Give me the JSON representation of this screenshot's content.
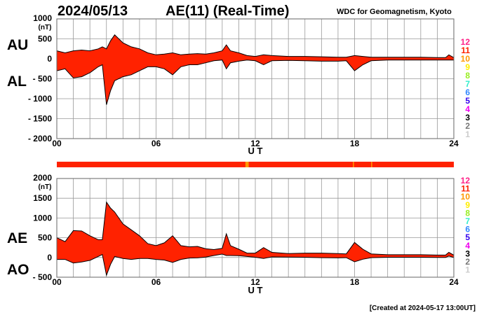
{
  "header": {
    "date": "2024/05/13",
    "title": "AE(11) (Real-Time)",
    "source": "WDC for Geomagnetism, Kyoto",
    "created": "[Created at 2024-05-17 13:00UT]"
  },
  "colors": {
    "fill": "#ff2200",
    "fill_10_stations": "#ff9900",
    "outline": "#000000",
    "grid": "#999999"
  },
  "station_legend": [
    {
      "label": "12",
      "color": "#ff2288"
    },
    {
      "label": "11",
      "color": "#ff2200"
    },
    {
      "label": "10",
      "color": "#ff9900"
    },
    {
      "label": "9",
      "color": "#ffee00"
    },
    {
      "label": "8",
      "color": "#99ee22"
    },
    {
      "label": "7",
      "color": "#33eecc"
    },
    {
      "label": "6",
      "color": "#3388ff"
    },
    {
      "label": "5",
      "color": "#3300ee"
    },
    {
      "label": "4",
      "color": "#ee00ee"
    },
    {
      "label": "3",
      "color": "#000000"
    },
    {
      "label": "2",
      "color": "#777777"
    },
    {
      "label": "1",
      "color": "#cccccc"
    }
  ],
  "station_bar": {
    "base_color": "#ff2200",
    "segments": [
      {
        "from": 11.4,
        "to": 11.6,
        "color": "#ff9900"
      },
      {
        "from": 17.9,
        "to": 17.95,
        "color": "#ff9900"
      },
      {
        "from": 19.0,
        "to": 19.05,
        "color": "#ff9900"
      }
    ]
  },
  "chart_data": [
    {
      "type": "area",
      "upper_label": "AU",
      "lower_label": "AL",
      "xlabel": "U T",
      "ylabel_unit": "(nT)",
      "xlim": [
        0,
        24
      ],
      "ylim": [
        -2000,
        1000
      ],
      "xticks": [
        "00",
        "06",
        "12",
        "18",
        "24"
      ],
      "yticks": [
        {
          "v": 1000,
          "label": "1000"
        },
        {
          "v": 500,
          "label": "500"
        },
        {
          "v": 0,
          "label": "0"
        },
        {
          "v": -500,
          "label": "- 500"
        },
        {
          "v": -1000,
          "label": "- 1000"
        },
        {
          "v": -1500,
          "label": "- 1500"
        },
        {
          "v": -2000,
          "label": "- 2000"
        }
      ],
      "grid": true,
      "x": [
        0,
        0.5,
        1,
        1.5,
        2,
        2.5,
        2.75,
        3,
        3.25,
        3.5,
        4,
        4.5,
        5,
        5.5,
        6,
        6.5,
        7,
        7.5,
        8,
        8.5,
        9,
        9.5,
        10,
        10.25,
        10.5,
        11,
        11.5,
        12,
        12.5,
        13,
        14,
        15,
        16,
        17,
        17.5,
        18,
        18.5,
        19,
        20,
        21,
        22,
        23,
        23.5,
        23.7,
        24
      ],
      "series": [
        {
          "name": "AU",
          "values": [
            200,
            150,
            200,
            220,
            200,
            250,
            300,
            250,
            450,
            600,
            400,
            300,
            250,
            150,
            100,
            120,
            150,
            100,
            120,
            130,
            120,
            150,
            200,
            350,
            200,
            150,
            80,
            60,
            100,
            80,
            60,
            60,
            50,
            40,
            40,
            80,
            60,
            40,
            40,
            40,
            40,
            30,
            30,
            100,
            30
          ]
        },
        {
          "name": "AL",
          "values": [
            -300,
            -250,
            -480,
            -450,
            -350,
            -200,
            -150,
            -1150,
            -800,
            -550,
            -450,
            -400,
            -300,
            -200,
            -200,
            -250,
            -400,
            -200,
            -150,
            -150,
            -100,
            -50,
            -30,
            -250,
            -100,
            -60,
            -30,
            -50,
            -150,
            -50,
            -40,
            -50,
            -60,
            -60,
            -50,
            -300,
            -150,
            -50,
            -30,
            -30,
            -30,
            -30,
            -30,
            -30,
            -30
          ]
        }
      ]
    },
    {
      "type": "area",
      "upper_label": "AE",
      "lower_label": "AO",
      "xlabel": "U T",
      "ylabel_unit": "(nT)",
      "xlim": [
        0,
        24
      ],
      "ylim": [
        -500,
        2000
      ],
      "xticks": [
        "00",
        "06",
        "12",
        "18",
        "24"
      ],
      "yticks": [
        {
          "v": 2000,
          "label": "2000"
        },
        {
          "v": 1500,
          "label": "1500"
        },
        {
          "v": 1000,
          "label": "1000"
        },
        {
          "v": 500,
          "label": "500"
        },
        {
          "v": 0,
          "label": "0"
        },
        {
          "v": -500,
          "label": "- 500"
        }
      ],
      "grid": true,
      "x": [
        0,
        0.5,
        1,
        1.5,
        2,
        2.5,
        2.75,
        3,
        3.25,
        3.5,
        4,
        4.5,
        5,
        5.5,
        6,
        6.5,
        7,
        7.5,
        8,
        8.5,
        9,
        9.5,
        10,
        10.25,
        10.5,
        11,
        11.5,
        12,
        12.5,
        13,
        14,
        15,
        16,
        17,
        17.5,
        18,
        18.5,
        19,
        20,
        21,
        22,
        23,
        23.5,
        23.7,
        24
      ],
      "series": [
        {
          "name": "AE",
          "values": [
            500,
            400,
            680,
            670,
            550,
            450,
            450,
            1400,
            1250,
            1150,
            850,
            700,
            550,
            350,
            300,
            370,
            550,
            300,
            270,
            280,
            220,
            200,
            230,
            600,
            300,
            210,
            110,
            110,
            250,
            130,
            100,
            110,
            110,
            100,
            90,
            380,
            210,
            90,
            70,
            70,
            70,
            60,
            60,
            130,
            60
          ]
        },
        {
          "name": "AO",
          "values": [
            -50,
            -50,
            -140,
            -115,
            -75,
            25,
            75,
            -450,
            -175,
            25,
            -25,
            -50,
            -25,
            -25,
            -50,
            -65,
            -125,
            -50,
            -15,
            -10,
            10,
            50,
            85,
            50,
            50,
            45,
            25,
            5,
            -25,
            15,
            10,
            5,
            -5,
            -10,
            -5,
            -110,
            -45,
            -5,
            5,
            5,
            5,
            0,
            0,
            35,
            0
          ]
        }
      ]
    }
  ]
}
